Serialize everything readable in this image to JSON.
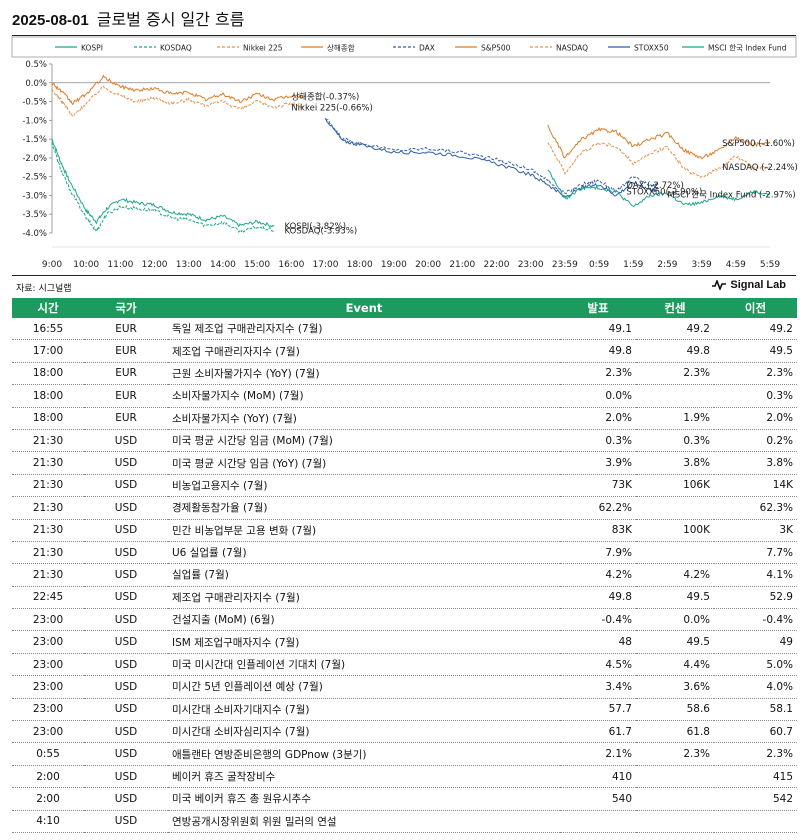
{
  "header": {
    "date": "2025-08-01",
    "title": "글로벌 증시 일간 흐름"
  },
  "chart_data": {
    "type": "line",
    "title": "글로벌 증시 일간 흐름",
    "ylabel": "",
    "ylim": [
      -4.0,
      0.5
    ],
    "yticks": [
      "0.5%",
      "0.0%",
      "-0.5%",
      "-1.0%",
      "-1.5%",
      "-2.0%",
      "-2.5%",
      "-3.0%",
      "-3.5%",
      "-4.0%"
    ],
    "xticks": [
      "9:00",
      "10:00",
      "11:00",
      "12:00",
      "13:00",
      "14:00",
      "15:00",
      "16:00",
      "17:00",
      "18:00",
      "19:00",
      "20:00",
      "21:00",
      "22:00",
      "23:00",
      "23:59",
      "0:59",
      "1:59",
      "2:59",
      "3:59",
      "4:59",
      "5:59"
    ],
    "legend": [
      {
        "name": "KOSPI",
        "color": "#1fa88e",
        "dash": "solid"
      },
      {
        "name": "KOSDAQ",
        "color": "#1fa88e",
        "dash": "dashed"
      },
      {
        "name": "Nikkei 225",
        "color": "#e8914a",
        "dash": "dashed"
      },
      {
        "name": "상해종합",
        "color": "#e07b28",
        "dash": "solid"
      },
      {
        "name": "DAX",
        "color": "#2f5ea8",
        "dash": "dashed"
      },
      {
        "name": "S&P500",
        "color": "#e07b28",
        "dash": "solid"
      },
      {
        "name": "NASDAQ",
        "color": "#e8914a",
        "dash": "dashed"
      },
      {
        "name": "STOXX50",
        "color": "#2f5ea8",
        "dash": "solid"
      },
      {
        "name": "MSCI 한국 Index Fund",
        "color": "#1fa88e",
        "dash": "solid"
      }
    ],
    "series": [
      {
        "name": "KOSPI",
        "color": "#1fa88e",
        "dash": "solid",
        "x": [
          0,
          0.25,
          0.5,
          1,
          1.3,
          1.6,
          2,
          2.5,
          3,
          3.5,
          4,
          4.5,
          5,
          5.5,
          6,
          6.5
        ],
        "y": [
          -1.5,
          -2.1,
          -2.6,
          -3.4,
          -3.7,
          -3.35,
          -3.1,
          -3.2,
          -3.25,
          -3.45,
          -3.5,
          -3.65,
          -3.55,
          -3.8,
          -3.7,
          -3.82
        ]
      },
      {
        "name": "KOSDAQ",
        "color": "#1fa88e",
        "dash": "dashed",
        "x": [
          0,
          0.25,
          0.5,
          1,
          1.3,
          1.6,
          2,
          2.5,
          3,
          3.5,
          4,
          4.5,
          5,
          5.5,
          6,
          6.5
        ],
        "y": [
          -1.6,
          -2.3,
          -2.8,
          -3.6,
          -3.95,
          -3.5,
          -3.3,
          -3.35,
          -3.4,
          -3.6,
          -3.65,
          -3.8,
          -3.72,
          -3.95,
          -3.85,
          -3.93
        ]
      },
      {
        "name": "Nikkei 225",
        "color": "#e8914a",
        "dash": "dashed",
        "x": [
          0,
          0.3,
          0.6,
          1,
          1.5,
          2,
          2.5,
          3,
          3.5,
          4,
          4.5,
          5,
          5.5,
          6,
          6.5,
          7,
          7.35
        ],
        "y": [
          -0.2,
          -0.5,
          -0.9,
          -0.55,
          -0.1,
          -0.35,
          -0.5,
          -0.4,
          -0.55,
          -0.45,
          -0.6,
          -0.5,
          -0.7,
          -0.5,
          -0.65,
          -0.55,
          -0.66
        ]
      },
      {
        "name": "상해종합",
        "color": "#e07b28",
        "dash": "solid",
        "x": [
          0,
          0.3,
          0.6,
          1,
          1.5,
          2,
          2.5,
          3,
          3.5,
          4,
          4.5,
          5,
          5.5,
          6,
          6.5,
          7,
          7.35
        ],
        "y": [
          0.0,
          -0.25,
          -0.55,
          -0.3,
          0.15,
          -0.1,
          -0.2,
          -0.15,
          -0.3,
          -0.25,
          -0.45,
          -0.3,
          -0.5,
          -0.3,
          -0.45,
          -0.35,
          -0.37
        ]
      },
      {
        "name": "DAX",
        "color": "#2f5ea8",
        "dash": "dashed",
        "x": [
          8,
          8.5,
          9,
          10,
          11,
          12,
          13,
          14,
          14.5,
          15,
          15.5,
          16,
          16.5,
          17,
          17.5,
          17.7
        ],
        "y": [
          -0.95,
          -1.5,
          -1.6,
          -1.8,
          -1.75,
          -1.85,
          -2.05,
          -2.3,
          -2.6,
          -2.95,
          -2.7,
          -2.6,
          -2.9,
          -2.5,
          -2.75,
          -2.72
        ]
      },
      {
        "name": "STOXX50",
        "color": "#2f5ea8",
        "dash": "solid",
        "x": [
          8,
          8.5,
          9,
          10,
          11,
          12,
          13,
          14,
          14.5,
          15,
          15.5,
          16,
          16.5,
          17,
          17.5,
          17.7
        ],
        "y": [
          -0.95,
          -1.55,
          -1.65,
          -1.85,
          -1.85,
          -1.95,
          -2.15,
          -2.45,
          -2.7,
          -3.05,
          -2.8,
          -2.7,
          -3.0,
          -2.65,
          -2.85,
          -2.9
        ]
      },
      {
        "name": "S&P500",
        "color": "#e07b28",
        "dash": "solid",
        "x": [
          14.5,
          15,
          15.5,
          16,
          16.5,
          17,
          17.5,
          18,
          18.5,
          19,
          19.5,
          20,
          20.5,
          21
        ],
        "y": [
          -1.15,
          -2.0,
          -1.5,
          -1.25,
          -1.3,
          -1.7,
          -1.5,
          -1.35,
          -1.8,
          -2.0,
          -1.8,
          -1.45,
          -1.65,
          -1.6
        ]
      },
      {
        "name": "NASDAQ",
        "color": "#e8914a",
        "dash": "dashed",
        "x": [
          14.5,
          15,
          15.5,
          16,
          16.5,
          17,
          17.5,
          18,
          18.5,
          19,
          19.5,
          20,
          20.5,
          21
        ],
        "y": [
          -1.55,
          -2.4,
          -1.85,
          -1.6,
          -1.7,
          -2.15,
          -1.9,
          -1.7,
          -2.3,
          -2.5,
          -2.3,
          -1.95,
          -2.25,
          -2.24
        ]
      },
      {
        "name": "MSCI 한국 Index Fund",
        "color": "#1fa88e",
        "dash": "solid",
        "x": [
          14.5,
          15,
          15.5,
          16,
          16.5,
          17,
          17.5,
          18,
          18.5,
          19,
          19.5,
          20,
          20.5,
          21
        ],
        "y": [
          -2.3,
          -3.1,
          -2.8,
          -2.8,
          -2.9,
          -3.3,
          -3.0,
          -2.95,
          -3.25,
          -3.2,
          -3.0,
          -3.1,
          -2.9,
          -2.97
        ]
      }
    ],
    "annotations": [
      {
        "text": "상해종합(-0.37%)",
        "x": 7.0,
        "y": -0.37
      },
      {
        "text": "Nikkei 225(-0.66%)",
        "x": 7.0,
        "y": -0.66
      },
      {
        "text": "KOSPI(-3.82%)",
        "x": 6.8,
        "y": -3.82
      },
      {
        "text": "KOSDAQ(-3.93%)",
        "x": 6.8,
        "y": -3.93
      },
      {
        "text": "S&P500 (-1.60%)",
        "x": 19.6,
        "y": -1.6
      },
      {
        "text": "NASDAQ (-2.24%)",
        "x": 19.6,
        "y": -2.24
      },
      {
        "text": "DAX (-2.72%)",
        "x": 16.8,
        "y": -2.72
      },
      {
        "text": "STOXX50(-2.90%)",
        "x": 16.8,
        "y": -2.9
      },
      {
        "text": "MSCI 한국 Index Fund (-2.97%)",
        "x": 18.0,
        "y": -2.97
      }
    ]
  },
  "source": "자료: 시그널랩",
  "brand": {
    "name": "Signal Lab",
    "icon": "pulse-icon"
  },
  "table": {
    "headers": {
      "time": "시간",
      "country": "국가",
      "event": "Event",
      "actual": "발표",
      "consensus": "컨센",
      "previous": "이전"
    },
    "rows": [
      {
        "time": "16:55",
        "country": "EUR",
        "event": "독일 제조업 구매관리자지수 (7월)",
        "actual": "49.1",
        "consensus": "49.2",
        "previous": "49.2"
      },
      {
        "time": "17:00",
        "country": "EUR",
        "event": "제조업 구매관리자지수 (7월)",
        "actual": "49.8",
        "consensus": "49.8",
        "previous": "49.5"
      },
      {
        "time": "18:00",
        "country": "EUR",
        "event": "근원 소비자물가지수 (YoY) (7월)",
        "actual": "2.3%",
        "consensus": "2.3%",
        "previous": "2.3%"
      },
      {
        "time": "18:00",
        "country": "EUR",
        "event": "소비자물가지수 (MoM) (7월)",
        "actual": "0.0%",
        "consensus": "",
        "previous": "0.3%"
      },
      {
        "time": "18:00",
        "country": "EUR",
        "event": "소비자물가지수 (YoY) (7월)",
        "actual": "2.0%",
        "consensus": "1.9%",
        "previous": "2.0%"
      },
      {
        "time": "21:30",
        "country": "USD",
        "event": "미국 평균 시간당 임금 (MoM) (7월)",
        "actual": "0.3%",
        "consensus": "0.3%",
        "previous": "0.2%"
      },
      {
        "time": "21:30",
        "country": "USD",
        "event": "미국 평균 시간당 임금 (YoY) (7월)",
        "actual": "3.9%",
        "consensus": "3.8%",
        "previous": "3.8%"
      },
      {
        "time": "21:30",
        "country": "USD",
        "event": "비농업고용지수 (7월)",
        "actual": "73K",
        "consensus": "106K",
        "previous": "14K"
      },
      {
        "time": "21:30",
        "country": "USD",
        "event": "경제활동참가율 (7월)",
        "actual": "62.2%",
        "consensus": "",
        "previous": "62.3%"
      },
      {
        "time": "21:30",
        "country": "USD",
        "event": "민간 비농업부문 고용 변화 (7월)",
        "actual": "83K",
        "consensus": "100K",
        "previous": "3K"
      },
      {
        "time": "21:30",
        "country": "USD",
        "event": "U6 실업률 (7월)",
        "actual": "7.9%",
        "consensus": "",
        "previous": "7.7%"
      },
      {
        "time": "21:30",
        "country": "USD",
        "event": "실업률 (7월)",
        "actual": "4.2%",
        "consensus": "4.2%",
        "previous": "4.1%"
      },
      {
        "time": "22:45",
        "country": "USD",
        "event": "제조업 구매관리자지수 (7월)",
        "actual": "49.8",
        "consensus": "49.5",
        "previous": "52.9"
      },
      {
        "time": "23:00",
        "country": "USD",
        "event": "건설지출 (MoM) (6월)",
        "actual": "-0.4%",
        "consensus": "0.0%",
        "previous": "-0.4%"
      },
      {
        "time": "23:00",
        "country": "USD",
        "event": "ISM 제조업구매자지수 (7월)",
        "actual": "48",
        "consensus": "49.5",
        "previous": "49"
      },
      {
        "time": "23:00",
        "country": "USD",
        "event": "미국 미시간대 인플레이션 기대치 (7월)",
        "actual": "4.5%",
        "consensus": "4.4%",
        "previous": "5.0%"
      },
      {
        "time": "23:00",
        "country": "USD",
        "event": "미시간 5년 인플레이션 예상 (7월)",
        "actual": "3.4%",
        "consensus": "3.6%",
        "previous": "4.0%"
      },
      {
        "time": "23:00",
        "country": "USD",
        "event": "미시간대 소비자기대지수 (7월)",
        "actual": "57.7",
        "consensus": "58.6",
        "previous": "58.1"
      },
      {
        "time": "23:00",
        "country": "USD",
        "event": "미시간대 소비자심리지수 (7월)",
        "actual": "61.7",
        "consensus": "61.8",
        "previous": "60.7"
      },
      {
        "time": "0:55",
        "country": "USD",
        "event": "애틀랜타 연방준비은행의 GDPnow (3분기)",
        "actual": "2.1%",
        "consensus": "2.3%",
        "previous": "2.3%"
      },
      {
        "time": "2:00",
        "country": "USD",
        "event": "베이커 휴즈 굴착장비수",
        "actual": "410",
        "consensus": "",
        "previous": "415"
      },
      {
        "time": "2:00",
        "country": "USD",
        "event": "미국 베이커 휴즈 총 원유시추수",
        "actual": "540",
        "consensus": "",
        "previous": "542"
      },
      {
        "time": "4:10",
        "country": "USD",
        "event": "연방공개시장위원회 위원 밀러의 연설",
        "actual": "",
        "consensus": "",
        "previous": ""
      }
    ]
  }
}
